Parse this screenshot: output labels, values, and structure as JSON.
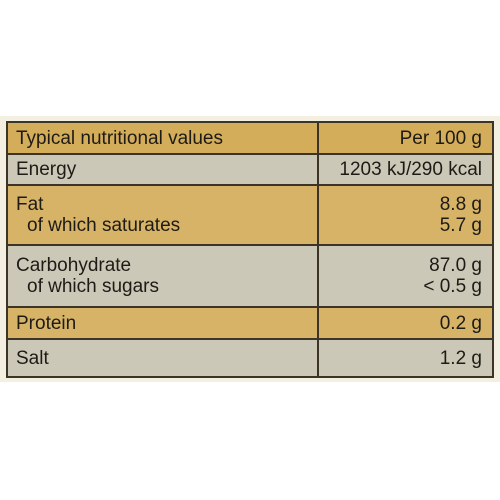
{
  "table": {
    "header": {
      "label": "Typical nutritional values",
      "per": "Per 100 g"
    },
    "rows": [
      {
        "label": "Energy",
        "value": "1203 kJ/290 kcal"
      },
      {
        "label": "Fat",
        "value": "8.8 g",
        "sub_label": "of which saturates",
        "sub_value": "5.7 g"
      },
      {
        "label": "Carbohydrate",
        "value": "87.0 g",
        "sub_label": "of which sugars",
        "sub_value": "< 0.5 g"
      },
      {
        "label": "Protein",
        "value": "0.2 g"
      },
      {
        "label": "Salt",
        "value": "1.2 g"
      }
    ]
  },
  "colors": {
    "header_fill": "#d4ad5a",
    "shaded_fill": "#ccc8b8",
    "golden_fill": "#d6b367",
    "panel_background": "#f3efe1",
    "border": "#3c3426",
    "text": "#1e1b16"
  }
}
